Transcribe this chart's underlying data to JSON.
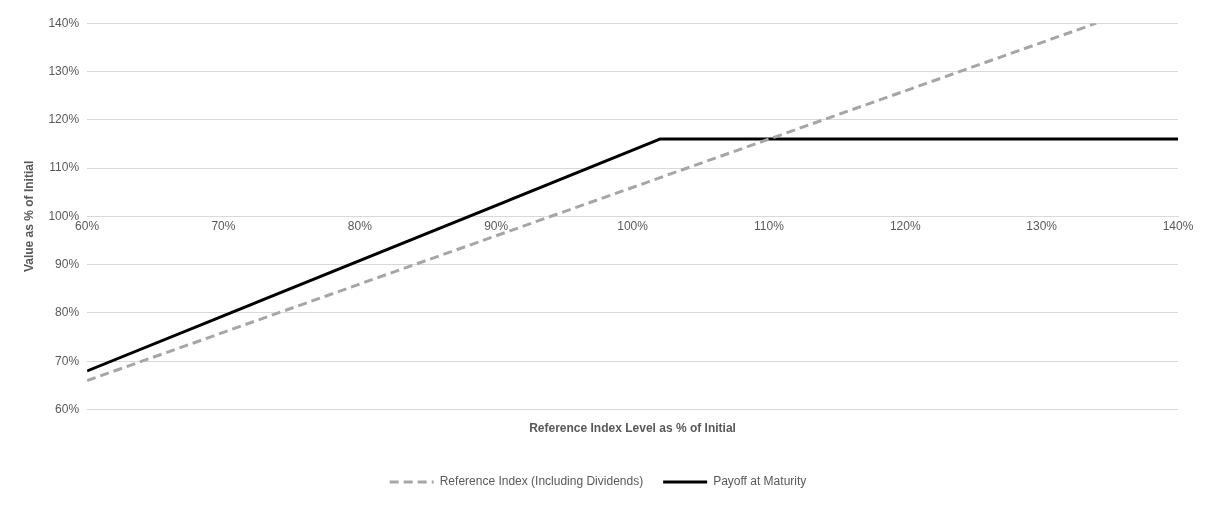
{
  "chart_data": {
    "type": "line",
    "xlabel": "Reference Index Level as % of Initial",
    "ylabel": "Value as % of Initial",
    "series": [
      {
        "name": "Reference Index (Including Dividends)",
        "color": "#a6a6a6",
        "line_style": "dashed",
        "x": [
          60,
          134
        ],
        "values": [
          66,
          140
        ]
      },
      {
        "name": "Payoff at Maturity",
        "color": "#000000",
        "line_style": "solid",
        "x": [
          60,
          102,
          140
        ],
        "values": [
          68,
          116,
          116
        ]
      }
    ],
    "xlim": [
      60,
      140
    ],
    "ylim": [
      60,
      140
    ],
    "xticks": [
      {
        "value": 60,
        "label": "60%"
      },
      {
        "value": 70,
        "label": "70%"
      },
      {
        "value": 80,
        "label": "80%"
      },
      {
        "value": 90,
        "label": "90%"
      },
      {
        "value": 100,
        "label": "100%"
      },
      {
        "value": 110,
        "label": "110%"
      },
      {
        "value": 120,
        "label": "120%"
      },
      {
        "value": 130,
        "label": "130%"
      },
      {
        "value": 140,
        "label": "140%"
      }
    ],
    "yticks": [
      {
        "value": 60,
        "label": "60%"
      },
      {
        "value": 70,
        "label": "70%"
      },
      {
        "value": 80,
        "label": "80%"
      },
      {
        "value": 90,
        "label": "90%"
      },
      {
        "value": 100,
        "label": "100%"
      },
      {
        "value": 110,
        "label": "110%"
      },
      {
        "value": 120,
        "label": "120%"
      },
      {
        "value": 130,
        "label": "130%"
      },
      {
        "value": 140,
        "label": "140%"
      }
    ],
    "grid": "y",
    "legend": "bottom",
    "marker": "none"
  }
}
